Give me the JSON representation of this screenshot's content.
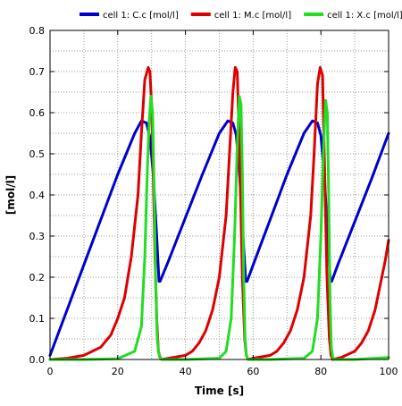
{
  "chart_data": {
    "type": "line",
    "title": "",
    "xlabel": "Time [s]",
    "ylabel": "[mol/l]",
    "xlim": [
      0,
      100
    ],
    "ylim": [
      0,
      0.8
    ],
    "xticks": [
      0,
      20,
      40,
      60,
      80,
      100
    ],
    "yticks": [
      0.0,
      0.1,
      0.2,
      0.3,
      0.4,
      0.5,
      0.6,
      0.7,
      0.8
    ],
    "grid": true,
    "legend_position": "top",
    "series": [
      {
        "name": "cell 1: C.c [mol/l]",
        "color": "#0000cc",
        "x": [
          0,
          5,
          10,
          15,
          20,
          25,
          27,
          28.5,
          29.5,
          30.5,
          31.5,
          32.2,
          32.5,
          35,
          40,
          45,
          50,
          52.5,
          54,
          55,
          56,
          57,
          57.8,
          58.2,
          60,
          65,
          70,
          75,
          77.5,
          79,
          80,
          81,
          82,
          82.8,
          83.2,
          85,
          90,
          95,
          100
        ],
        "y": [
          0.01,
          0.12,
          0.23,
          0.34,
          0.45,
          0.55,
          0.58,
          0.575,
          0.54,
          0.45,
          0.3,
          0.19,
          0.19,
          0.24,
          0.345,
          0.45,
          0.55,
          0.58,
          0.575,
          0.545,
          0.45,
          0.3,
          0.19,
          0.19,
          0.23,
          0.34,
          0.45,
          0.55,
          0.58,
          0.575,
          0.545,
          0.45,
          0.3,
          0.19,
          0.19,
          0.23,
          0.335,
          0.44,
          0.55
        ]
      },
      {
        "name": "cell 1: M.c [mol/l]",
        "color": "#dd0000",
        "x": [
          0,
          5,
          10,
          15,
          18,
          20,
          22,
          24,
          26,
          27,
          28,
          29,
          29.5,
          30,
          30.5,
          31,
          31.5,
          32,
          32.5,
          33,
          35,
          40,
          42,
          44,
          46,
          48,
          50,
          52,
          53,
          54,
          54.7,
          55.3,
          56,
          56.8,
          57.5,
          58,
          58.5,
          60,
          65,
          67,
          69,
          71,
          73,
          75,
          77,
          78,
          79,
          79.8,
          80.5,
          81,
          81.8,
          82.5,
          83,
          83.5,
          86,
          90,
          92,
          94,
          96,
          98,
          99,
          100
        ],
        "y": [
          0.0,
          0.003,
          0.01,
          0.03,
          0.06,
          0.1,
          0.15,
          0.25,
          0.4,
          0.55,
          0.68,
          0.71,
          0.7,
          0.62,
          0.45,
          0.25,
          0.1,
          0.02,
          0.005,
          0.0,
          0.003,
          0.01,
          0.02,
          0.04,
          0.07,
          0.12,
          0.2,
          0.35,
          0.5,
          0.65,
          0.71,
          0.7,
          0.5,
          0.2,
          0.05,
          0.01,
          0.0,
          0.003,
          0.01,
          0.02,
          0.04,
          0.07,
          0.12,
          0.2,
          0.35,
          0.5,
          0.67,
          0.71,
          0.69,
          0.5,
          0.2,
          0.05,
          0.01,
          0.0,
          0.005,
          0.02,
          0.04,
          0.07,
          0.12,
          0.2,
          0.24,
          0.29
        ]
      },
      {
        "name": "cell 1: X.c [mol/l]",
        "color": "#22dd22",
        "x": [
          0,
          10,
          20,
          25,
          27,
          28,
          28.7,
          29.3,
          29.8,
          30.3,
          30.8,
          31.2,
          31.6,
          32,
          32.4,
          33,
          40,
          50,
          52,
          53.5,
          54.5,
          55.3,
          55.9,
          56.4,
          56.8,
          57.2,
          57.6,
          58,
          58.5,
          65,
          75,
          77.5,
          79,
          80,
          80.8,
          81.4,
          81.9,
          82.3,
          82.7,
          83.1,
          83.5,
          84,
          90,
          100
        ],
        "y": [
          0.0,
          0.0,
          0.002,
          0.02,
          0.08,
          0.25,
          0.45,
          0.58,
          0.64,
          0.6,
          0.4,
          0.2,
          0.06,
          0.02,
          0.005,
          0.0,
          0.0,
          0.003,
          0.02,
          0.1,
          0.3,
          0.52,
          0.64,
          0.62,
          0.45,
          0.2,
          0.05,
          0.01,
          0.0,
          0.0,
          0.003,
          0.02,
          0.1,
          0.3,
          0.52,
          0.63,
          0.6,
          0.4,
          0.15,
          0.03,
          0.005,
          0.0,
          0.0,
          0.005
        ]
      }
    ]
  }
}
